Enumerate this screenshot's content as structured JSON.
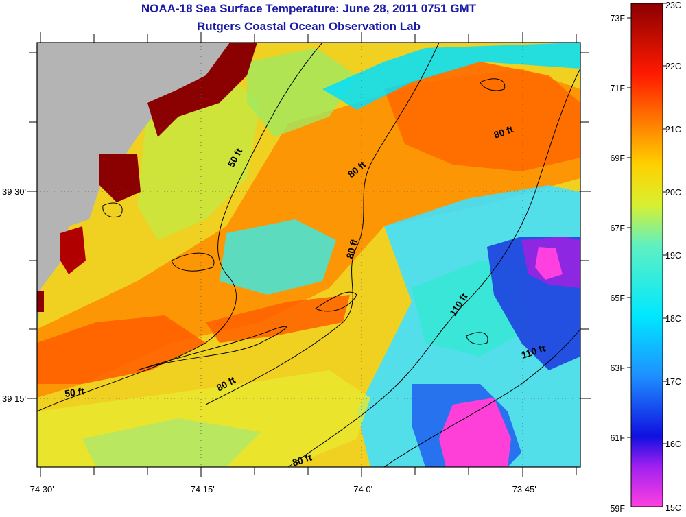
{
  "title": {
    "line1": "NOAA-18 Sea Surface Temperature:  June 28, 2011 0751 GMT",
    "line2": "Rutgers Coastal Ocean Observation Lab"
  },
  "map": {
    "x_ticks": [
      "-74 30'",
      "-74 15'",
      "-74 0'",
      "-73 45'"
    ],
    "y_ticks": [
      "39 30'",
      "39 15'"
    ],
    "depth_contours": [
      "50 ft",
      "50 ft",
      "80 ft",
      "80 ft",
      "80 ft",
      "80 ft",
      "80 ft",
      "110 ft",
      "110 ft"
    ],
    "land_color": "#b4b4b4"
  },
  "colorbar": {
    "fahrenheit": [
      "73F",
      "71F",
      "69F",
      "67F",
      "65F",
      "63F",
      "61F",
      "59F"
    ],
    "celsius": [
      "23C",
      "22C",
      "21C",
      "20C",
      "19C",
      "18C",
      "17C",
      "16C",
      "15C"
    ],
    "colors": [
      "#f040d8",
      "#a020f0",
      "#1010e0",
      "#1e90ff",
      "#00e0ff",
      "#60f0c0",
      "#d8f030",
      "#ffd000",
      "#ff8000",
      "#ff1a00",
      "#8b0000"
    ]
  }
}
